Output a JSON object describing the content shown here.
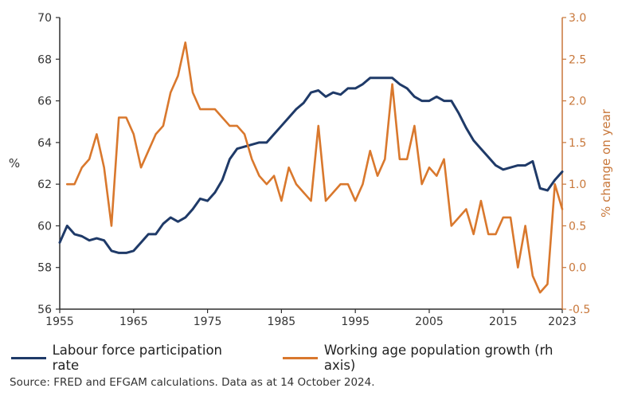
{
  "chart_data": {
    "type": "line",
    "title": "",
    "xlabel": "",
    "ylabel_left": "%",
    "ylabel_right": "% change on year",
    "xlim": [
      1955,
      2023
    ],
    "ylim_left": [
      56,
      70
    ],
    "ylim_right": [
      -0.5,
      3.0
    ],
    "x_ticks": [
      "1955",
      "1965",
      "1975",
      "1985",
      "1995",
      "2005",
      "2015",
      "2023"
    ],
    "y_ticks_left": [
      "56",
      "58",
      "60",
      "62",
      "64",
      "66",
      "68",
      "70"
    ],
    "y_ticks_right": [
      "-0.5",
      "0.0",
      "0.5",
      "1.0",
      "1.5",
      "2.0",
      "2.5",
      "3.0"
    ],
    "grid": false,
    "legend_position": "bottom",
    "colors": {
      "participation": "#1f3a68",
      "population": "#d9782d",
      "axes": "#2f2f2f",
      "right_axis": "#c8773a"
    },
    "series": [
      {
        "name": "Labour force participation rate",
        "axis": "left",
        "x": [
          1955,
          1956,
          1957,
          1958,
          1959,
          1960,
          1961,
          1962,
          1963,
          1964,
          1965,
          1966,
          1967,
          1968,
          1969,
          1970,
          1971,
          1972,
          1973,
          1974,
          1975,
          1976,
          1977,
          1978,
          1979,
          1980,
          1981,
          1982,
          1983,
          1984,
          1985,
          1986,
          1987,
          1988,
          1989,
          1990,
          1991,
          1992,
          1993,
          1994,
          1995,
          1996,
          1997,
          1998,
          1999,
          2000,
          2001,
          2002,
          2003,
          2004,
          2005,
          2006,
          2007,
          2008,
          2009,
          2010,
          2011,
          2012,
          2013,
          2014,
          2015,
          2016,
          2017,
          2018,
          2019,
          2020,
          2021,
          2022,
          2023
        ],
        "values": [
          59.2,
          60.0,
          59.6,
          59.5,
          59.3,
          59.4,
          59.3,
          58.8,
          58.7,
          58.7,
          58.8,
          59.2,
          59.6,
          59.6,
          60.1,
          60.4,
          60.2,
          60.4,
          60.8,
          61.3,
          61.2,
          61.6,
          62.2,
          63.2,
          63.7,
          63.8,
          63.9,
          64.0,
          64.0,
          64.4,
          64.8,
          65.2,
          65.6,
          65.9,
          66.4,
          66.5,
          66.2,
          66.4,
          66.3,
          66.6,
          66.6,
          66.8,
          67.1,
          67.1,
          67.1,
          67.1,
          66.8,
          66.6,
          66.2,
          66.0,
          66.0,
          66.2,
          66.0,
          66.0,
          65.4,
          64.7,
          64.1,
          63.7,
          63.3,
          62.9,
          62.7,
          62.8,
          62.9,
          62.9,
          63.1,
          61.8,
          61.7,
          62.2,
          62.6
        ]
      },
      {
        "name": "Working age population growth (rh axis)",
        "axis": "right",
        "x": [
          1955,
          1956,
          1957,
          1958,
          1959,
          1960,
          1961,
          1962,
          1963,
          1964,
          1965,
          1966,
          1967,
          1968,
          1969,
          1970,
          1971,
          1972,
          1973,
          1974,
          1975,
          1976,
          1977,
          1978,
          1979,
          1980,
          1981,
          1982,
          1983,
          1984,
          1985,
          1986,
          1987,
          1988,
          1989,
          1990,
          1991,
          1992,
          1993,
          1994,
          1995,
          1996,
          1997,
          1998,
          1999,
          2000,
          2001,
          2002,
          2003,
          2004,
          2005,
          2006,
          2007,
          2008,
          2009,
          2010,
          2011,
          2012,
          2013,
          2014,
          2015,
          2016,
          2017,
          2018,
          2019,
          2020,
          2021,
          2022,
          2023
        ],
        "values": [
          null,
          1.0,
          1.0,
          1.2,
          1.3,
          1.6,
          1.2,
          0.5,
          1.8,
          1.8,
          1.6,
          1.2,
          1.4,
          1.6,
          1.7,
          2.1,
          2.3,
          2.7,
          2.1,
          1.9,
          1.9,
          1.9,
          1.8,
          1.7,
          1.7,
          1.6,
          1.3,
          1.1,
          1.0,
          1.1,
          0.8,
          1.2,
          1.0,
          0.9,
          0.8,
          1.7,
          0.8,
          0.9,
          1.0,
          1.0,
          0.8,
          1.0,
          1.4,
          1.1,
          1.3,
          2.2,
          1.3,
          1.3,
          1.7,
          1.0,
          1.2,
          1.1,
          1.3,
          0.5,
          0.6,
          0.7,
          0.4,
          0.8,
          0.4,
          0.4,
          0.6,
          0.6,
          0.0,
          0.5,
          -0.1,
          -0.3,
          -0.2,
          1.0,
          0.7
        ]
      }
    ]
  },
  "legend": {
    "items": [
      {
        "label": "Labour force participation rate"
      },
      {
        "label": "Working age population growth (rh axis)"
      }
    ]
  },
  "footer": {
    "source": "Source: FRED and EFGAM calculations. Data as at 14 October 2024."
  }
}
